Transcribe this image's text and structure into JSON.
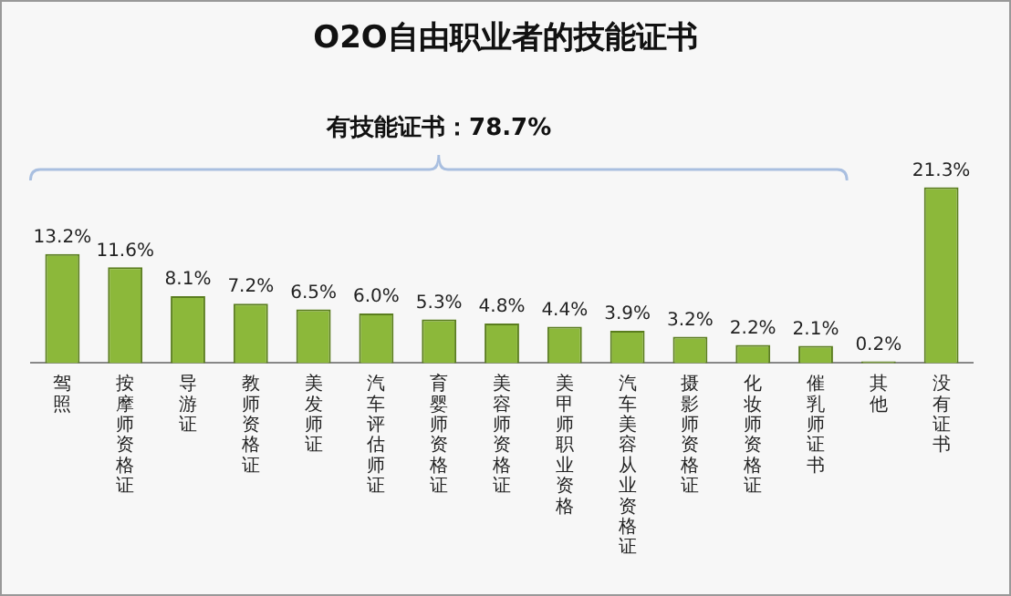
{
  "chart_data": {
    "type": "bar",
    "title": "O2O自由职业者的技能证书",
    "categories": [
      "驾照",
      "按摩师资格证",
      "导游证",
      "教师资格证",
      "美发师证",
      "汽车评估师证",
      "育婴师资格证",
      "美容师资格证",
      "美甲师职业资格",
      "汽车美容从业资格证",
      "摄影师资格证",
      "化妆师资格证",
      "催乳师证书",
      "其他",
      "没有证书"
    ],
    "values": [
      13.2,
      11.6,
      8.1,
      7.2,
      6.5,
      6.0,
      5.3,
      4.8,
      4.4,
      3.9,
      3.2,
      2.2,
      2.1,
      0.2,
      21.3
    ],
    "value_labels": [
      "13.2%",
      "11.6%",
      "8.1%",
      "7.2%",
      "6.5%",
      "6.0%",
      "5.3%",
      "4.8%",
      "4.4%",
      "3.9%",
      "3.2%",
      "2.2%",
      "2.1%",
      "0.2%",
      "21.3%"
    ],
    "color": "#8cb83a",
    "annotations": [
      "有技能证书：78.7%"
    ],
    "grid": false,
    "legend": false
  }
}
